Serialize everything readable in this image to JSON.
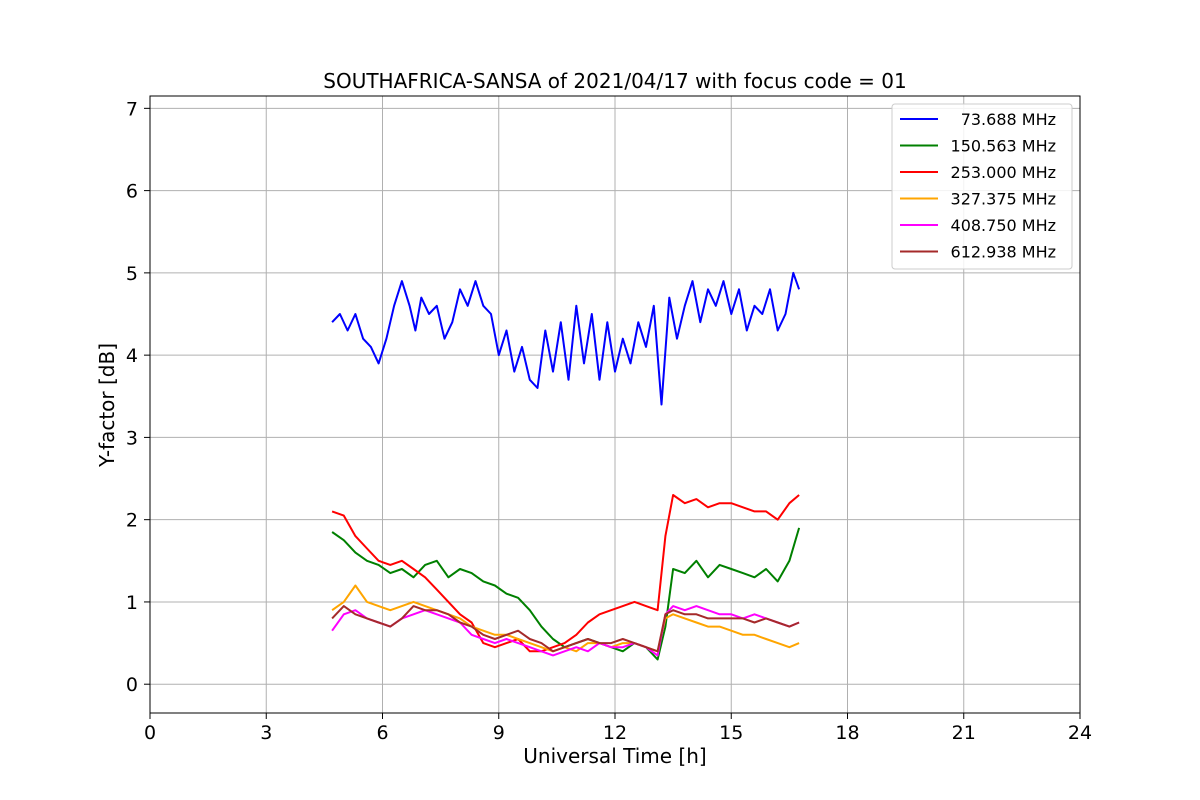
{
  "chart_data": {
    "type": "line",
    "title": "SOUTHAFRICA-SANSA of 2021/04/17 with focus code = 01",
    "xlabel": "Universal Time [h]",
    "ylabel": "Y-factor [dB]",
    "xlim": [
      0,
      24
    ],
    "ylim": [
      -0.35,
      7.15
    ],
    "xticks": [
      "0",
      "3",
      "6",
      "9",
      "12",
      "15",
      "18",
      "21",
      "24"
    ],
    "xtick_values": [
      0,
      3,
      6,
      9,
      12,
      15,
      18,
      21,
      24
    ],
    "yticks": [
      "0",
      "1",
      "2",
      "3",
      "4",
      "5",
      "6",
      "7"
    ],
    "ytick_values": [
      0,
      1,
      2,
      3,
      4,
      5,
      6,
      7
    ],
    "grid": true,
    "legend_position": "top-right",
    "series": [
      {
        "name": "73.688 MHz",
        "color": "#0000ff",
        "x": [
          4.7,
          4.9,
          5.1,
          5.3,
          5.5,
          5.7,
          5.9,
          6.1,
          6.3,
          6.5,
          6.7,
          6.85,
          7.0,
          7.2,
          7.4,
          7.6,
          7.8,
          8.0,
          8.2,
          8.4,
          8.6,
          8.8,
          9.0,
          9.2,
          9.4,
          9.6,
          9.8,
          10.0,
          10.2,
          10.4,
          10.6,
          10.8,
          11.0,
          11.2,
          11.4,
          11.6,
          11.8,
          12.0,
          12.2,
          12.4,
          12.6,
          12.8,
          13.0,
          13.2,
          13.4,
          13.6,
          13.8,
          14.0,
          14.2,
          14.4,
          14.6,
          14.8,
          15.0,
          15.2,
          15.4,
          15.6,
          15.8,
          16.0,
          16.2,
          16.4,
          16.6,
          16.75
        ],
        "y": [
          4.4,
          4.5,
          4.3,
          4.5,
          4.2,
          4.1,
          3.9,
          4.2,
          4.6,
          4.9,
          4.6,
          4.3,
          4.7,
          4.5,
          4.6,
          4.2,
          4.4,
          4.8,
          4.6,
          4.9,
          4.6,
          4.5,
          4.0,
          4.3,
          3.8,
          4.1,
          3.7,
          3.6,
          4.3,
          3.8,
          4.4,
          3.7,
          4.6,
          3.9,
          4.5,
          3.7,
          4.4,
          3.8,
          4.2,
          3.9,
          4.4,
          4.1,
          4.6,
          3.4,
          4.7,
          4.2,
          4.6,
          4.9,
          4.4,
          4.8,
          4.6,
          4.9,
          4.5,
          4.8,
          4.3,
          4.6,
          4.5,
          4.8,
          4.3,
          4.5,
          5.0,
          4.8
        ]
      },
      {
        "name": "150.563 MHz",
        "color": "#008000",
        "x": [
          4.7,
          5.0,
          5.3,
          5.6,
          5.9,
          6.2,
          6.5,
          6.8,
          7.1,
          7.4,
          7.7,
          8.0,
          8.3,
          8.6,
          8.9,
          9.2,
          9.5,
          9.8,
          10.1,
          10.4,
          10.7,
          11.0,
          11.3,
          11.6,
          11.9,
          12.2,
          12.5,
          12.8,
          13.1,
          13.3,
          13.5,
          13.8,
          14.1,
          14.4,
          14.7,
          15.0,
          15.3,
          15.6,
          15.9,
          16.2,
          16.5,
          16.75
        ],
        "y": [
          1.85,
          1.75,
          1.6,
          1.5,
          1.45,
          1.35,
          1.4,
          1.3,
          1.45,
          1.5,
          1.3,
          1.4,
          1.35,
          1.25,
          1.2,
          1.1,
          1.05,
          0.9,
          0.7,
          0.55,
          0.45,
          0.5,
          0.55,
          0.5,
          0.45,
          0.4,
          0.5,
          0.45,
          0.3,
          0.7,
          1.4,
          1.35,
          1.5,
          1.3,
          1.45,
          1.4,
          1.35,
          1.3,
          1.4,
          1.25,
          1.5,
          1.9
        ]
      },
      {
        "name": "253.000 MHz",
        "color": "#ff0000",
        "x": [
          4.7,
          5.0,
          5.3,
          5.6,
          5.9,
          6.2,
          6.5,
          6.8,
          7.1,
          7.4,
          7.7,
          8.0,
          8.3,
          8.6,
          8.9,
          9.2,
          9.5,
          9.8,
          10.1,
          10.4,
          10.7,
          11.0,
          11.3,
          11.6,
          11.9,
          12.2,
          12.5,
          12.8,
          13.1,
          13.3,
          13.5,
          13.8,
          14.1,
          14.4,
          14.7,
          15.0,
          15.3,
          15.6,
          15.9,
          16.2,
          16.5,
          16.75
        ],
        "y": [
          2.1,
          2.05,
          1.8,
          1.65,
          1.5,
          1.45,
          1.5,
          1.4,
          1.3,
          1.15,
          1.0,
          0.85,
          0.75,
          0.5,
          0.45,
          0.5,
          0.55,
          0.4,
          0.4,
          0.45,
          0.5,
          0.6,
          0.75,
          0.85,
          0.9,
          0.95,
          1.0,
          0.95,
          0.9,
          1.8,
          2.3,
          2.2,
          2.25,
          2.15,
          2.2,
          2.2,
          2.15,
          2.1,
          2.1,
          2.0,
          2.2,
          2.3
        ]
      },
      {
        "name": "327.375 MHz",
        "color": "#ffa500",
        "x": [
          4.7,
          5.0,
          5.3,
          5.6,
          5.9,
          6.2,
          6.5,
          6.8,
          7.1,
          7.4,
          7.7,
          8.0,
          8.3,
          8.6,
          8.9,
          9.2,
          9.5,
          9.8,
          10.1,
          10.4,
          10.7,
          11.0,
          11.3,
          11.6,
          11.9,
          12.2,
          12.5,
          12.8,
          13.1,
          13.3,
          13.5,
          13.8,
          14.1,
          14.4,
          14.7,
          15.0,
          15.3,
          15.6,
          15.9,
          16.2,
          16.5,
          16.75
        ],
        "y": [
          0.9,
          1.0,
          1.2,
          1.0,
          0.95,
          0.9,
          0.95,
          1.0,
          0.95,
          0.9,
          0.85,
          0.8,
          0.7,
          0.65,
          0.6,
          0.6,
          0.55,
          0.5,
          0.45,
          0.4,
          0.45,
          0.4,
          0.5,
          0.5,
          0.45,
          0.5,
          0.5,
          0.45,
          0.4,
          0.8,
          0.85,
          0.8,
          0.75,
          0.7,
          0.7,
          0.65,
          0.6,
          0.6,
          0.55,
          0.5,
          0.45,
          0.5
        ]
      },
      {
        "name": "408.750 MHz",
        "color": "#ff00ff",
        "x": [
          4.7,
          5.0,
          5.3,
          5.6,
          5.9,
          6.2,
          6.5,
          6.8,
          7.1,
          7.4,
          7.7,
          8.0,
          8.3,
          8.6,
          8.9,
          9.2,
          9.5,
          9.8,
          10.1,
          10.4,
          10.7,
          11.0,
          11.3,
          11.6,
          11.9,
          12.2,
          12.5,
          12.8,
          13.1,
          13.3,
          13.5,
          13.8,
          14.1,
          14.4,
          14.7,
          15.0,
          15.3,
          15.6,
          15.9,
          16.2,
          16.5,
          16.75
        ],
        "y": [
          0.65,
          0.85,
          0.9,
          0.8,
          0.75,
          0.7,
          0.8,
          0.85,
          0.9,
          0.85,
          0.8,
          0.75,
          0.6,
          0.55,
          0.5,
          0.55,
          0.5,
          0.45,
          0.4,
          0.35,
          0.4,
          0.45,
          0.4,
          0.5,
          0.45,
          0.45,
          0.5,
          0.45,
          0.35,
          0.85,
          0.95,
          0.9,
          0.95,
          0.9,
          0.85,
          0.85,
          0.8,
          0.85,
          0.8,
          0.75,
          0.7,
          0.75
        ]
      },
      {
        "name": "612.938 MHz",
        "color": "#a52a2a",
        "x": [
          4.7,
          5.0,
          5.3,
          5.6,
          5.9,
          6.2,
          6.5,
          6.8,
          7.1,
          7.4,
          7.7,
          8.0,
          8.3,
          8.6,
          8.9,
          9.2,
          9.5,
          9.8,
          10.1,
          10.4,
          10.7,
          11.0,
          11.3,
          11.6,
          11.9,
          12.2,
          12.5,
          12.8,
          13.1,
          13.3,
          13.5,
          13.8,
          14.1,
          14.4,
          14.7,
          15.0,
          15.3,
          15.6,
          15.9,
          16.2,
          16.5,
          16.75
        ],
        "y": [
          0.8,
          0.95,
          0.85,
          0.8,
          0.75,
          0.7,
          0.8,
          0.95,
          0.9,
          0.9,
          0.85,
          0.75,
          0.7,
          0.6,
          0.55,
          0.6,
          0.65,
          0.55,
          0.5,
          0.4,
          0.45,
          0.5,
          0.55,
          0.5,
          0.5,
          0.55,
          0.5,
          0.45,
          0.4,
          0.85,
          0.9,
          0.85,
          0.85,
          0.8,
          0.8,
          0.8,
          0.8,
          0.75,
          0.8,
          0.75,
          0.7,
          0.75
        ]
      }
    ]
  }
}
